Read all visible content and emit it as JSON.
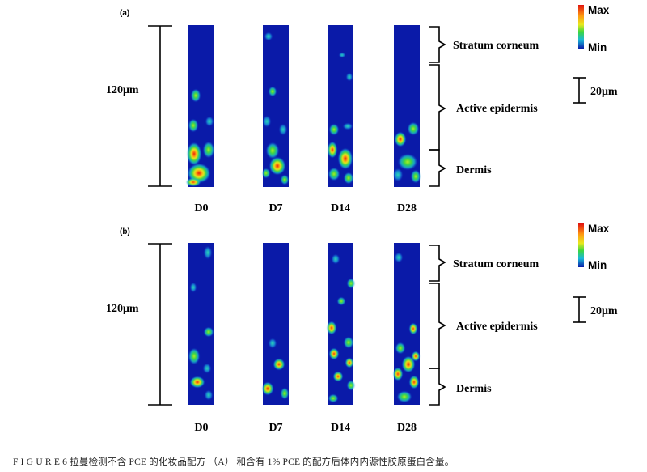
{
  "panels": [
    {
      "label": "(a)",
      "scale_label": "120μm",
      "ref_bar_label": "20μm",
      "colorbar": {
        "max_label": "Max",
        "min_label": "Min"
      },
      "layers": [
        "Stratum corneum",
        "Active epidermis",
        "Dermis"
      ],
      "columns": [
        "D0",
        "D7",
        "D14",
        "D28"
      ]
    },
    {
      "label": "(b)",
      "scale_label": "120μm",
      "ref_bar_label": "20μm",
      "colorbar": {
        "max_label": "Max",
        "min_label": "Min"
      },
      "layers": [
        "Stratum corneum",
        "Active epidermis",
        "Dermis"
      ],
      "columns": [
        "D0",
        "D7",
        "D14",
        "D28"
      ]
    }
  ],
  "caption": "F I G U R E 6  拉曼检测不含 PCE 的化妆品配方 （A） 和含有 1% PCE 的配方后体内内源性胶原蛋白含量。",
  "colors": {
    "background_map": "#0a1aa8",
    "low": "#1e6cf0",
    "mid": "#19c9c9",
    "green": "#3dd63d",
    "yellow": "#e8e81e",
    "orange": "#ff8a10",
    "high": "#e01010"
  }
}
